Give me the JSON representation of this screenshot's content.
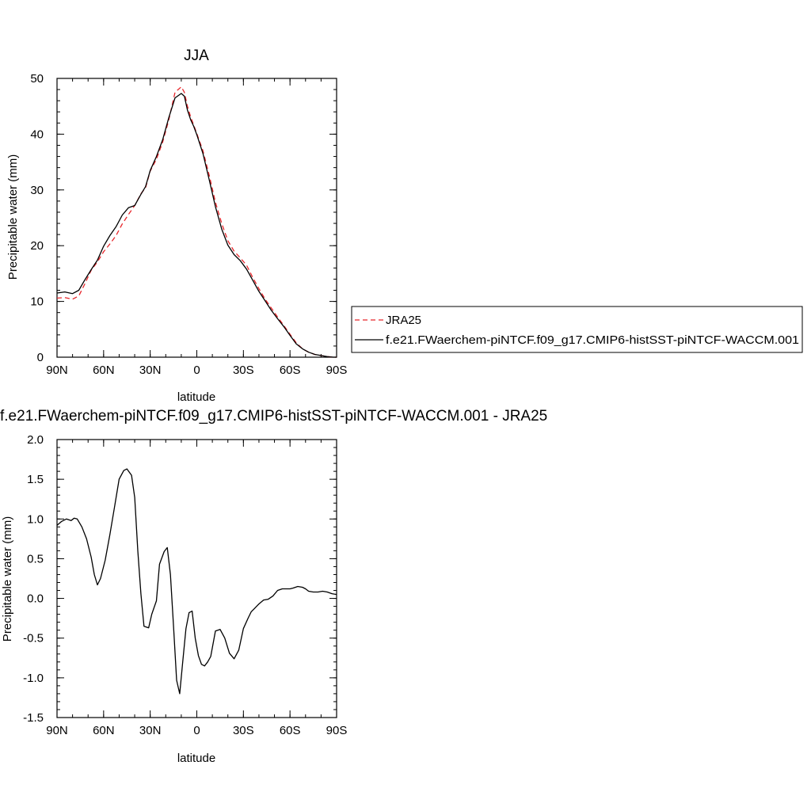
{
  "chart_data": [
    {
      "type": "line",
      "title": "JJA",
      "xlabel": "latitude",
      "ylabel": "Precipitable water (mm)",
      "xlim": [
        90,
        -90
      ],
      "ylim": [
        0,
        50
      ],
      "x_ticks": [
        90,
        60,
        30,
        0,
        -30,
        -60,
        -90
      ],
      "x_tick_labels": [
        "90N",
        "60N",
        "30N",
        "0",
        "30S",
        "60S",
        "90S"
      ],
      "y_ticks": [
        0,
        10,
        20,
        30,
        40,
        50
      ],
      "y_tick_labels": [
        "0",
        "10",
        "20",
        "30",
        "40",
        "50"
      ],
      "legend_position": "right",
      "series": [
        {
          "name": "JRA25",
          "color": "#e8262b",
          "dash": "dashed",
          "x": [
            90,
            85,
            80,
            76,
            72,
            68,
            64,
            60,
            56,
            52,
            48,
            44,
            40,
            36,
            33,
            30,
            26,
            22,
            18,
            14,
            10,
            8,
            6,
            4,
            2,
            0,
            -4,
            -8,
            -12,
            -16,
            -20,
            -24,
            -28,
            -32,
            -36,
            -40,
            -44,
            -48,
            -52,
            -56,
            -60,
            -64,
            -68,
            -72,
            -76,
            -80,
            -84,
            -88,
            -90
          ],
          "y": [
            10.6,
            10.7,
            10.4,
            11.0,
            13.2,
            15.6,
            17.1,
            18.9,
            20.3,
            21.8,
            23.9,
            25.6,
            27.2,
            29.3,
            30.4,
            33.4,
            35.5,
            38.6,
            42.6,
            47.5,
            48.5,
            47.5,
            45.0,
            43.1,
            41.6,
            40.1,
            37.0,
            32.6,
            27.8,
            24.0,
            20.9,
            19.0,
            17.8,
            16.5,
            14.3,
            12.3,
            10.4,
            8.8,
            7.2,
            5.7,
            4.1,
            2.6,
            1.5,
            0.9,
            0.5,
            0.3,
            0.1,
            0.0,
            0.0
          ]
        },
        {
          "name": "f.e21.FWaerchem-piNTCF.f09_g17.CMIP6-histSST-piNTCF-WACCM.001",
          "color": "#000000",
          "dash": "solid",
          "x": [
            90,
            85,
            80,
            76,
            72,
            68,
            64,
            60,
            56,
            52,
            48,
            44,
            40,
            36,
            33,
            30,
            26,
            22,
            18,
            14,
            10,
            8,
            6,
            4,
            2,
            0,
            -4,
            -8,
            -12,
            -16,
            -20,
            -24,
            -28,
            -32,
            -36,
            -40,
            -44,
            -48,
            -52,
            -56,
            -60,
            -64,
            -68,
            -72,
            -76,
            -80,
            -84,
            -88,
            -90
          ],
          "y": [
            11.5,
            11.7,
            11.4,
            12.0,
            13.9,
            15.7,
            17.4,
            19.9,
            21.8,
            23.4,
            25.5,
            26.8,
            27.2,
            29.2,
            30.6,
            33.5,
            36.0,
            39.0,
            43.0,
            46.5,
            47.3,
            46.8,
            44.3,
            42.6,
            41.4,
            39.9,
            36.5,
            31.8,
            27.0,
            23.0,
            20.1,
            18.4,
            17.3,
            15.8,
            13.8,
            11.8,
            10.1,
            8.4,
            6.9,
            5.5,
            3.9,
            2.4,
            1.5,
            0.9,
            0.5,
            0.3,
            0.1,
            0.0,
            0.0
          ]
        }
      ]
    },
    {
      "type": "line",
      "title": "f.e21.FWaerchem-piNTCF.f09_g17.CMIP6-histSST-piNTCF-WACCM.001 - JRA25",
      "xlabel": "latitude",
      "ylabel": "Precipitable water (mm)",
      "xlim": [
        90,
        -90
      ],
      "ylim": [
        -1.5,
        2.0
      ],
      "x_ticks": [
        90,
        60,
        30,
        0,
        -30,
        -60,
        -90
      ],
      "x_tick_labels": [
        "90N",
        "60N",
        "30N",
        "0",
        "30S",
        "60S",
        "90S"
      ],
      "y_ticks": [
        -1.5,
        -1.0,
        -0.5,
        0.0,
        0.5,
        1.0,
        1.5,
        2.0
      ],
      "y_tick_labels": [
        "-1.5",
        "-1.0",
        "-0.5",
        "0.0",
        "0.5",
        "1.0",
        "1.5",
        "2.0"
      ],
      "series": [
        {
          "color": "#000000",
          "dash": "solid",
          "x": [
            90,
            87,
            84,
            81,
            79,
            77,
            74,
            71,
            68,
            66,
            64,
            62,
            59,
            56,
            53,
            50,
            47,
            45,
            42,
            40,
            38,
            36,
            34,
            31,
            29,
            26,
            24,
            21,
            19,
            17,
            15,
            13,
            11,
            9,
            7,
            5,
            3,
            1,
            -1,
            -3,
            -5,
            -7,
            -9,
            -12,
            -15,
            -18,
            -21,
            -24,
            -27,
            -30,
            -33,
            -35,
            -37,
            -40,
            -43,
            -46,
            -49,
            -52,
            -55,
            -58,
            -60,
            -62,
            -65,
            -68,
            -70,
            -72,
            -75,
            -78,
            -81,
            -84,
            -87,
            -90
          ],
          "y": [
            0.92,
            0.97,
            1.0,
            0.98,
            1.01,
            1.0,
            0.9,
            0.75,
            0.52,
            0.3,
            0.17,
            0.25,
            0.48,
            0.8,
            1.15,
            1.5,
            1.61,
            1.63,
            1.55,
            1.27,
            0.6,
            0.06,
            -0.35,
            -0.37,
            -0.2,
            -0.03,
            0.43,
            0.59,
            0.64,
            0.3,
            -0.35,
            -1.03,
            -1.2,
            -0.79,
            -0.38,
            -0.18,
            -0.16,
            -0.5,
            -0.72,
            -0.83,
            -0.85,
            -0.8,
            -0.73,
            -0.41,
            -0.39,
            -0.5,
            -0.69,
            -0.76,
            -0.65,
            -0.38,
            -0.25,
            -0.17,
            -0.13,
            -0.07,
            -0.02,
            -0.01,
            0.03,
            0.1,
            0.12,
            0.12,
            0.12,
            0.13,
            0.15,
            0.14,
            0.12,
            0.09,
            0.08,
            0.08,
            0.09,
            0.08,
            0.06,
            0.05
          ]
        }
      ]
    }
  ]
}
